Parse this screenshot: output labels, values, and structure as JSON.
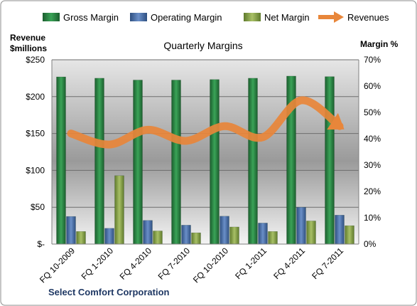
{
  "chart_data": {
    "type": "bar",
    "title": "Quarterly Margins",
    "company": "Select Comfort Corporation",
    "left_axis": {
      "title_line1": "Revenue",
      "title_line2": "$millions",
      "ticks": [
        "$-",
        "$50",
        "$100",
        "$150",
        "$200",
        "$250"
      ],
      "range": [
        0,
        250
      ]
    },
    "right_axis": {
      "title": "Margin %",
      "ticks": [
        "0%",
        "10%",
        "20%",
        "30%",
        "40%",
        "50%",
        "60%",
        "70%"
      ],
      "range": [
        0,
        70
      ]
    },
    "categories": [
      "FQ 10-2009",
      "FQ 1-2010",
      "FQ 4-2010",
      "FQ 7-2010",
      "FQ 10-2010",
      "FQ 1-2011",
      "FQ 4-2011",
      "FQ 7-2011"
    ],
    "legend": {
      "gross": "Gross Margin",
      "operating": "Operating Margin",
      "net": "Net Margin",
      "revenues": "Revenues"
    },
    "series": [
      {
        "name": "Gross Margin",
        "axis": "right",
        "values": [
          63.5,
          63,
          62.3,
          62.3,
          62.5,
          63,
          63.8,
          63.6
        ]
      },
      {
        "name": "Operating Margin",
        "axis": "right",
        "values": [
          10.5,
          6,
          9,
          7.2,
          10.6,
          8,
          14,
          11
        ]
      },
      {
        "name": "Net Margin",
        "axis": "right",
        "values": [
          4.8,
          26,
          5,
          4.3,
          6.5,
          4.8,
          8.8,
          7
        ]
      },
      {
        "name": "Revenues",
        "axis": "left",
        "type": "line",
        "values": [
          150,
          135,
          155,
          140,
          160,
          145,
          195,
          160
        ]
      }
    ],
    "colors": {
      "gross": "#2e8b45",
      "operating": "#4a6fa8",
      "net": "#8aa34a",
      "revenues": "#e8863a"
    },
    "grid": true,
    "legend_position": "top"
  }
}
